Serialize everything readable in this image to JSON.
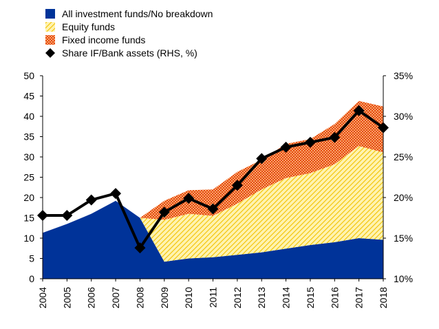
{
  "chart_data": {
    "type": "area",
    "categories": [
      "2004",
      "2005",
      "2006",
      "2007",
      "2008",
      "2009",
      "2010",
      "2011",
      "2012",
      "2013",
      "2014",
      "2015",
      "2016",
      "2017",
      "2018"
    ],
    "series": [
      {
        "name": "All investment funds/No breakdown",
        "kind": "stacked-area",
        "color": "#003399",
        "values": [
          11.3,
          13.5,
          16.0,
          19.2,
          15.0,
          4.2,
          5.0,
          5.3,
          5.9,
          6.5,
          7.4,
          8.3,
          9.0,
          10.0,
          9.6
        ]
      },
      {
        "name": "Equity funds",
        "kind": "stacked-area",
        "color": "#ffcc00",
        "pattern": "hatched",
        "values": [
          0,
          0,
          0,
          0,
          0,
          10.3,
          11.0,
          10.2,
          12.6,
          15.5,
          17.4,
          17.7,
          19.2,
          22.7,
          21.5
        ]
      },
      {
        "name": "Fixed income funds",
        "kind": "stacked-area",
        "color": "#ff4b00",
        "pattern": "dotted",
        "values": [
          0,
          0,
          0,
          0,
          0,
          4.7,
          5.8,
          6.5,
          7.8,
          7.3,
          8.4,
          8.4,
          9.9,
          11.1,
          11.3
        ]
      },
      {
        "name": "Share IF/Bank assets (RHS, %)",
        "kind": "line-markers",
        "axis": "right",
        "color": "#000000",
        "values": [
          17.8,
          17.8,
          19.7,
          20.5,
          13.8,
          18.2,
          19.9,
          18.6,
          21.5,
          24.8,
          26.2,
          26.8,
          27.4,
          30.7,
          28.6
        ]
      }
    ],
    "y_left": {
      "min": 0,
      "max": 50,
      "ticks": [
        "0",
        "5",
        "10",
        "15",
        "20",
        "25",
        "30",
        "35",
        "40",
        "45",
        "50"
      ]
    },
    "y_right": {
      "min": 10,
      "max": 35,
      "ticks": [
        "10%",
        "15%",
        "20%",
        "25%",
        "30%",
        "35%"
      ]
    },
    "grid": false,
    "legend": "top-left"
  }
}
